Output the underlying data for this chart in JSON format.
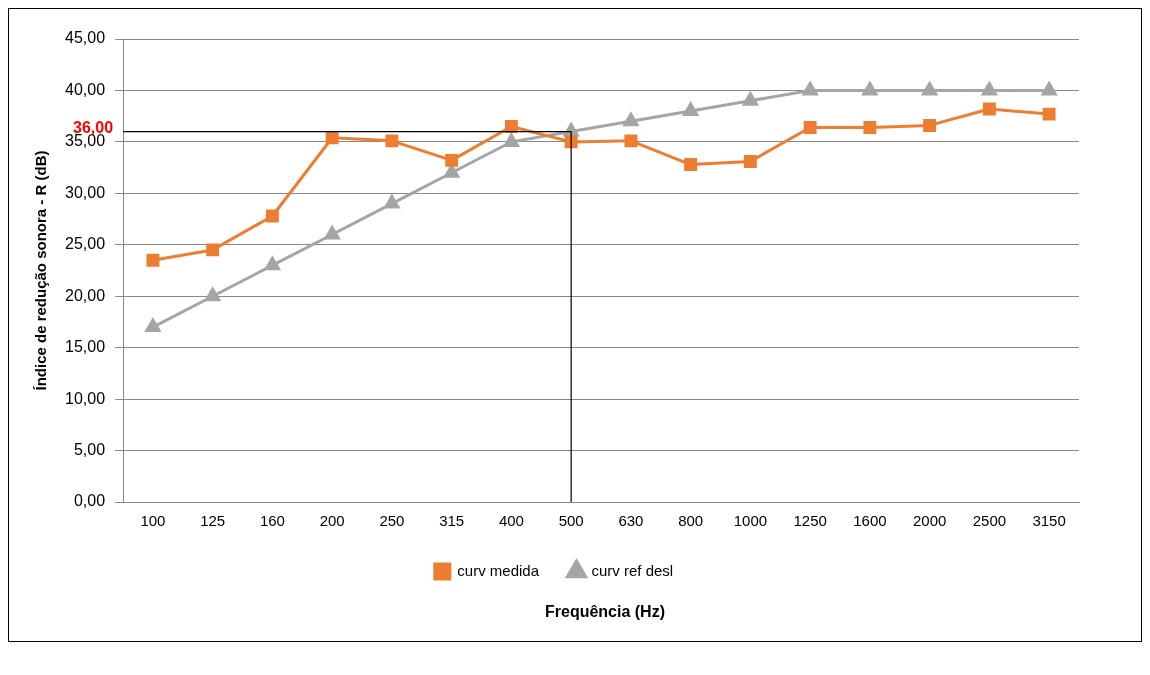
{
  "chart_data": {
    "type": "line",
    "xlabel": "Frequência (Hz)",
    "ylabel": "Índice de redução sonora - R (dB)",
    "categories": [
      "100",
      "125",
      "160",
      "200",
      "250",
      "315",
      "400",
      "500",
      "630",
      "800",
      "1000",
      "1250",
      "1600",
      "2000",
      "2500",
      "3150"
    ],
    "series": [
      {
        "name": "curv medida",
        "color": "#ed7d31",
        "marker": "square",
        "values": [
          23.5,
          24.5,
          27.8,
          35.4,
          35.1,
          33.2,
          36.5,
          35.0,
          35.1,
          32.8,
          33.1,
          36.4,
          36.4,
          36.6,
          38.2,
          37.7
        ]
      },
      {
        "name": "curv ref desl",
        "color": "#a5a5a5",
        "marker": "triangle",
        "values": [
          17,
          20,
          23,
          26,
          29,
          32,
          35,
          36,
          37,
          38,
          39,
          40,
          40,
          40,
          40,
          40
        ]
      }
    ],
    "ylim": [
      0,
      45
    ],
    "yticks": [
      {
        "value": 0,
        "label": "0,00"
      },
      {
        "value": 5,
        "label": "5,00"
      },
      {
        "value": 10,
        "label": "10,00"
      },
      {
        "value": 15,
        "label": "15,00"
      },
      {
        "value": 20,
        "label": "20,00"
      },
      {
        "value": 25,
        "label": "25,00"
      },
      {
        "value": 30,
        "label": "30,00"
      },
      {
        "value": 35,
        "label": "35,00"
      },
      {
        "value": 40,
        "label": "40,00"
      },
      {
        "value": 45,
        "label": "45,00"
      }
    ],
    "ref_lines": [
      {
        "axis": "y",
        "value": 36,
        "label": "36,00",
        "color": "#000000"
      },
      {
        "axis": "x",
        "value": "500",
        "color": "#000000"
      }
    ],
    "grid": "y",
    "legend": "bottom",
    "line_style": "solid"
  }
}
